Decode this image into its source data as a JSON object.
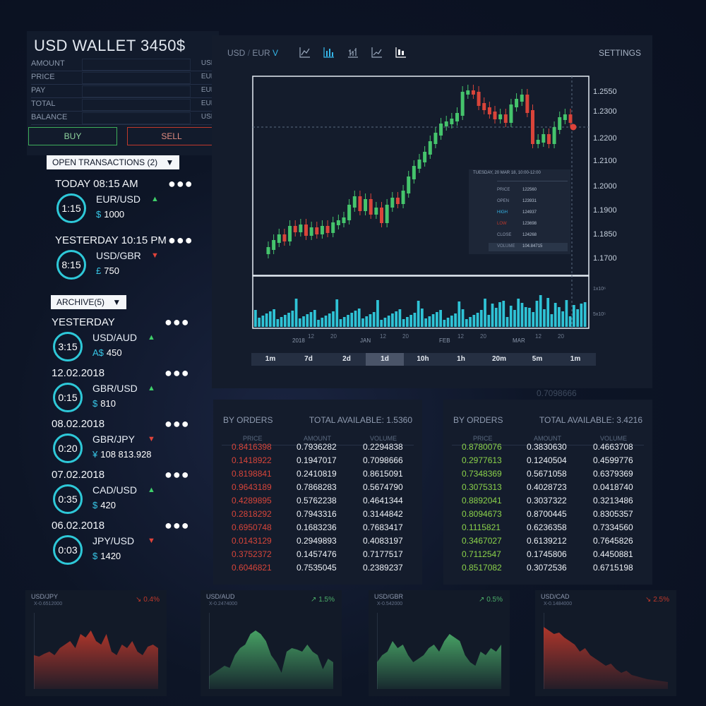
{
  "wallet": {
    "title": "USD WALLET 3450$",
    "rows": [
      {
        "label": "AMOUNT",
        "currency": "USD"
      },
      {
        "label": "PRICE",
        "currency": "EUR"
      },
      {
        "label": "PAY",
        "currency": "EUR"
      },
      {
        "label": "TOTAL",
        "currency": "EUR"
      },
      {
        "label": "BALANCE",
        "currency": "USD"
      }
    ],
    "buy_label": "BUY",
    "sell_label": "SELL"
  },
  "open_transactions": {
    "header": "OPEN TRANSACTIONS (2)",
    "items": [
      {
        "title": "TODAY 08:15 AM",
        "time": "1:15",
        "pair": "EUR/USD",
        "direction": "up",
        "symbol": "$",
        "amount": "1000"
      },
      {
        "title": "YESTERDAY 10:15 PM",
        "time": "8:15",
        "pair": "USD/GBR",
        "direction": "down",
        "symbol": "£",
        "amount": "750"
      }
    ]
  },
  "archive": {
    "header": "ARCHIVE(5)",
    "items": [
      {
        "title": "YESTERDAY",
        "time": "3:15",
        "pair": "USD/AUD",
        "direction": "up",
        "symbol": "A$",
        "amount": "450"
      },
      {
        "title": "12.02.2018",
        "time": "0:15",
        "pair": "GBR/USD",
        "direction": "up",
        "symbol": "$",
        "amount": "810"
      },
      {
        "title": "08.02.2018",
        "time": "0:20",
        "pair": "GBR/JPY",
        "direction": "down",
        "symbol": "¥",
        "amount": "108 813.928"
      },
      {
        "title": "07.02.2018",
        "time": "0:35",
        "pair": "CAD/USD",
        "direction": "up",
        "symbol": "$",
        "amount": "420"
      },
      {
        "title": "06.02.2018",
        "time": "0:03",
        "pair": "JPY/USD",
        "direction": "down",
        "symbol": "$",
        "amount": "1420"
      }
    ]
  },
  "chart": {
    "pair_base": "USD",
    "pair_quote": "EUR",
    "pair_toggle": "V",
    "settings_label": "SETTINGS",
    "toolbar_icons": [
      "line-chart-icon",
      "bar-chart-icon",
      "ohlc-chart-icon",
      "area-chart-icon",
      "candlestick-chart-icon"
    ],
    "price_ticks": [
      "1.2550",
      "1.2300",
      "1.2200",
      "1.2100",
      "1.2000",
      "1.1900",
      "1.1850",
      "1.1700"
    ],
    "volume_ticks": [
      "1x10⁶",
      "5x10⁵"
    ],
    "x_labels": [
      "2018",
      "12",
      "20",
      "JAN",
      "12",
      "20",
      "FEB",
      "12",
      "20",
      "MAR",
      "12",
      "20"
    ],
    "timeframes": [
      "1m",
      "7d",
      "2d",
      "1d",
      "10h",
      "1h",
      "20m",
      "5m",
      "1m"
    ],
    "active_timeframe": "1d",
    "tooltip": {
      "date": "TUESDAY, 20 MAR 18, 10:00-12:00",
      "rows": [
        {
          "label": "PRICE",
          "value": "122560"
        },
        {
          "label": "OPEN",
          "value": "123931"
        },
        {
          "label": "HIGH",
          "value": "124937"
        },
        {
          "label": "LOW",
          "value": "123698"
        },
        {
          "label": "CLOSE",
          "value": "124268"
        }
      ],
      "volume_label": "VOLUME",
      "volume_value": "104.84715"
    },
    "faded_value": "0.7098666"
  },
  "order_books": [
    {
      "title": "BY ORDERS",
      "total": "TOTAL AVAILABLE: 1.5360",
      "headers": [
        "PRICE",
        "AMOUNT",
        "VOLUME"
      ],
      "price_color": "red",
      "rows": [
        [
          "0.8416398",
          "0.7936282",
          "0.2294838"
        ],
        [
          "0.1418922",
          "0.1947017",
          "0.7098666"
        ],
        [
          "0.8198841",
          "0.2410819",
          "0.8615091"
        ],
        [
          "0.9643189",
          "0.7868283",
          "0.5674790"
        ],
        [
          "0.4289895",
          "0.5762238",
          "0.4641344"
        ],
        [
          "0.2818292",
          "0.7943316",
          "0.3144842"
        ],
        [
          "0.6950748",
          "0.1683236",
          "0.7683417"
        ],
        [
          "0.0143129",
          "0.2949893",
          "0.4083197"
        ],
        [
          "0.3752372",
          "0.1457476",
          "0.7177517"
        ],
        [
          "0.6046821",
          "0.7535045",
          "0.2389237"
        ]
      ]
    },
    {
      "title": "BY ORDERS",
      "total": "TOTAL AVAILABLE: 3.4216",
      "headers": [
        "PRICE",
        "AMOUNT",
        "VOLUME"
      ],
      "price_color": "green",
      "rows": [
        [
          "0.8780076",
          "0.3830630",
          "0.4663708"
        ],
        [
          "0.2977613",
          "0.1240504",
          "0.4599776"
        ],
        [
          "0.7348369",
          "0.5671058",
          "0.6379369"
        ],
        [
          "0.3075313",
          "0.4028723",
          "0.0418740"
        ],
        [
          "0.8892041",
          "0.3037322",
          "0.3213486"
        ],
        [
          "0.8094673",
          "0.8700445",
          "0.8305357"
        ],
        [
          "0.1115821",
          "0.6236358",
          "0.7334560"
        ],
        [
          "0.3467027",
          "0.6139212",
          "0.7645826"
        ],
        [
          "0.7112547",
          "0.1745806",
          "0.4450881"
        ],
        [
          "0.8517082",
          "0.3072536",
          "0.6715198"
        ]
      ]
    }
  ],
  "mini_charts": [
    {
      "pair": "USD/JPY",
      "sub": "X-0.6512000",
      "change": "0.4%",
      "direction": "down",
      "color": "#c0392b"
    },
    {
      "pair": "USD/AUD",
      "sub": "X-0.2474000",
      "change": "1.5%",
      "direction": "up",
      "color": "#4caf6a"
    },
    {
      "pair": "USD/GBR",
      "sub": "X-0.542000",
      "change": "0.5%",
      "direction": "up",
      "color": "#4caf6a"
    },
    {
      "pair": "USD/CAD",
      "sub": "X-0.1484000",
      "change": "2.5%",
      "direction": "down",
      "color": "#c0392b"
    }
  ]
}
